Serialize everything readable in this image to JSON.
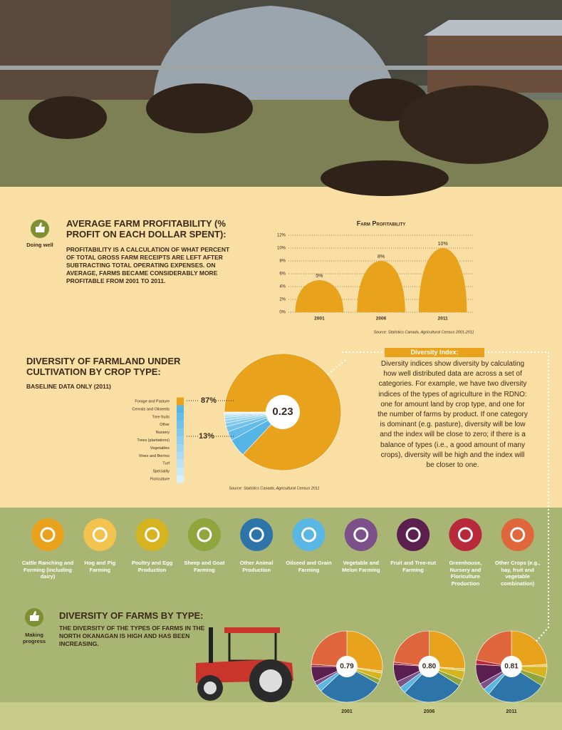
{
  "profitability": {
    "badge": "Doing well",
    "heading": "AVERAGE FARM PROFITABILITY (% PROFIT ON EACH DOLLAR SPENT):",
    "body": "PROFITABILITY IS A CALCULATION OF WHAT PERCENT OF TOTAL GROSS FARM RECEIPTS ARE LEFT AFTER SUBTRACTING TOTAL OPERATING EXPENSES. ON AVERAGE, FARMS BECAME CONSIDERABLY MORE PROFITABLE FROM 2001 TO 2011."
  },
  "crop_diversity": {
    "heading": "DIVERSITY OF FARMLAND UNDER CULTIVATION BY CROP TYPE:",
    "subheading": "BASELINE DATA ONLY (2011)"
  },
  "diversity_index": {
    "title": "Diversity Index:",
    "body": "Diversity indices show diversity by calculating how well distributed data are across a set of categories. For example, we have two diversity indices of the types of agriculture in the RDNO: one for amount land by crop type, and one for the number of farms by product. If one category is dominant (e.g. pasture), diversity will be low and the index will be close to zero; if there is a balance of types (i.e., a good amount of many crops), diversity will be high and the index will be closer to one."
  },
  "farm_types": [
    {
      "label": "Cattle Ranching and Forming (including dairy)",
      "color": "#e9a21c"
    },
    {
      "label": "Hog and Pig Farming",
      "color": "#f3c34f"
    },
    {
      "label": "Poultry and Egg Production",
      "color": "#d6b420"
    },
    {
      "label": "Sheep and Goat Farming",
      "color": "#8ea63c"
    },
    {
      "label": "Other Animal Production",
      "color": "#2d74a8"
    },
    {
      "label": "Oilseed and Grain Farming",
      "color": "#5ab6e2"
    },
    {
      "label": "Vegetable and Melon Farming",
      "color": "#7c5089"
    },
    {
      "label": "Fruit and Tree-nut Farming",
      "color": "#5b1f4f"
    },
    {
      "label": "Greenhouse, Nursery and Floriculture Production",
      "color": "#b8293b"
    },
    {
      "label": "Other Crops (e.g., hay, fruit and vegetable combination)",
      "color": "#e0663b"
    }
  ],
  "farm_diversity": {
    "badge": "Making progress",
    "heading": "DIVERSITY OF FARMS BY TYPE:",
    "body": "THE DIVERSITY OF THE TYPES OF FARMS IN THE NORTH OKANAGAN IS HIGH AND HAS BEEN INCREASING."
  },
  "chart_data": [
    {
      "type": "bar",
      "title": "Farm Profitability",
      "categories": [
        "2001",
        "2006",
        "2011"
      ],
      "values": [
        5,
        8,
        10
      ],
      "value_labels": [
        "5%",
        "8%",
        "10%"
      ],
      "color": "#e9a21c",
      "ylim": [
        0,
        12
      ],
      "yticks": [
        {
          "value": 0,
          "label": "0%"
        },
        {
          "value": 2,
          "label": "2%"
        },
        {
          "value": 4,
          "label": "4%"
        },
        {
          "value": 6,
          "label": "6%"
        },
        {
          "value": 8,
          "label": "8%"
        },
        {
          "value": 10,
          "label": "10%"
        },
        {
          "value": 12,
          "label": "12%"
        }
      ],
      "grid": true,
      "source": "Source: Statistics Canada, Agricultural Census 2001-2011"
    },
    {
      "type": "pie",
      "categories": [
        "Forage and Pasture",
        "Cereals and Oilseeds",
        "Tree fruits",
        "Other",
        "Nursery",
        "Trees (plantations)",
        "Vegetables",
        "Vines and Berries",
        "Turf",
        "Speciality",
        "Floriculture"
      ],
      "values": [
        87,
        5,
        2.5,
        1.5,
        1,
        0.8,
        0.7,
        0.6,
        0.4,
        0.3,
        0.2
      ],
      "colors": [
        "#e9a21c",
        "#55b5e6",
        "#62bbe8",
        "#70c2eb",
        "#7fc9ee",
        "#8ecff0",
        "#9dd6f2",
        "#acdcf4",
        "#bbe3f6",
        "#cae9f8",
        "#d9f0fa"
      ],
      "center_label": "0.23",
      "annotations": [
        "87%",
        "13%"
      ],
      "source": "Source: Statistics Canada, Agricultural Census 2011"
    },
    {
      "type": "pie",
      "title": "2001",
      "center_label": "0.79",
      "values": [
        27,
        1,
        3,
        2,
        30,
        3,
        2,
        7,
        1,
        24
      ]
    },
    {
      "type": "pie",
      "title": "2006",
      "center_label": "0.80",
      "values": [
        26,
        1,
        4,
        3,
        28,
        3,
        3,
        8,
        1,
        23
      ]
    },
    {
      "type": "pie",
      "title": "2011",
      "center_label": "0.81",
      "values": [
        24,
        1,
        5,
        4,
        27,
        3,
        3,
        9,
        2,
        22
      ]
    }
  ]
}
